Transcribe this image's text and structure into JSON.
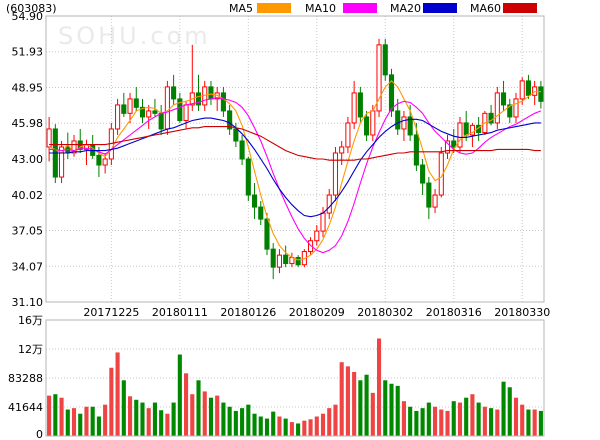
{
  "header": {
    "code": "(603083)",
    "legend": [
      {
        "name": "MA5",
        "color": "#ff9900"
      },
      {
        "name": "MA10",
        "color": "#ff00ff"
      },
      {
        "name": "MA20",
        "color": "#0000cc"
      },
      {
        "name": "MA60",
        "color": "#cc0000"
      }
    ]
  },
  "watermark": "SOHU.com",
  "colors": {
    "up": "#ff0000",
    "down": "#008000",
    "vol_up": "#ee4444",
    "vol_down": "#008800"
  },
  "chart_data": [
    {
      "type": "candlestick",
      "ylim": [
        31.1,
        54.9
      ],
      "y_ticks": [
        "54.90",
        "51.93",
        "48.95",
        "45.98",
        "43.00",
        "40.02",
        "37.05",
        "34.07",
        "31.10"
      ],
      "x_ticks": [
        {
          "label": "20171225",
          "index": 10
        },
        {
          "label": "20180111",
          "index": 21
        },
        {
          "label": "20180126",
          "index": 32
        },
        {
          "label": "20180209",
          "index": 43
        },
        {
          "label": "20180302",
          "index": 54
        },
        {
          "label": "20180316",
          "index": 65
        },
        {
          "label": "20180330",
          "index": 76
        }
      ],
      "grid": true,
      "candles": [
        [
          44.0,
          46.5,
          42.8,
          45.5
        ],
        [
          45.5,
          45.9,
          41.0,
          41.5
        ],
        [
          41.5,
          44.5,
          41.0,
          44.0
        ],
        [
          44.0,
          45.2,
          43.0,
          43.5
        ],
        [
          43.5,
          45.0,
          43.2,
          44.5
        ],
        [
          44.5,
          45.5,
          43.5,
          43.8
        ],
        [
          43.8,
          44.6,
          42.5,
          44.2
        ],
        [
          44.2,
          45.0,
          43.0,
          43.3
        ],
        [
          43.3,
          44.0,
          41.5,
          42.5
        ],
        [
          42.5,
          43.5,
          41.8,
          43.0
        ],
        [
          43.0,
          46.0,
          42.5,
          45.5
        ],
        [
          45.5,
          48.0,
          45.0,
          47.5
        ],
        [
          47.5,
          48.5,
          46.5,
          46.8
        ],
        [
          46.8,
          48.5,
          46.0,
          48.0
        ],
        [
          48.0,
          49.0,
          47.0,
          47.3
        ],
        [
          47.3,
          48.0,
          46.0,
          46.5
        ],
        [
          46.5,
          47.5,
          45.5,
          47.0
        ],
        [
          47.0,
          48.0,
          46.5,
          46.8
        ],
        [
          46.8,
          47.5,
          45.0,
          45.5
        ],
        [
          45.5,
          49.5,
          45.0,
          49.0
        ],
        [
          49.0,
          50.0,
          47.5,
          48.0
        ],
        [
          48.0,
          48.5,
          46.0,
          46.2
        ],
        [
          46.2,
          47.8,
          45.5,
          47.5
        ],
        [
          47.5,
          52.5,
          47.0,
          48.5
        ],
        [
          48.5,
          50.0,
          47.0,
          47.5
        ],
        [
          47.5,
          49.5,
          47.0,
          49.0
        ],
        [
          49.0,
          49.5,
          47.5,
          48.0
        ],
        [
          48.0,
          49.0,
          47.0,
          48.5
        ],
        [
          48.5,
          49.0,
          46.5,
          47.0
        ],
        [
          47.0,
          47.5,
          45.0,
          45.5
        ],
        [
          45.5,
          46.0,
          44.0,
          44.5
        ],
        [
          44.5,
          45.0,
          42.5,
          43.0
        ],
        [
          43.0,
          43.2,
          39.5,
          40.0
        ],
        [
          40.0,
          41.0,
          38.0,
          39.0
        ],
        [
          39.0,
          39.5,
          37.5,
          38.0
        ],
        [
          38.0,
          38.5,
          35.0,
          35.5
        ],
        [
          35.5,
          36.0,
          33.0,
          34.0
        ],
        [
          34.0,
          35.5,
          33.5,
          35.0
        ],
        [
          35.0,
          35.8,
          34.0,
          34.3
        ],
        [
          34.3,
          35.2,
          34.0,
          34.8
        ],
        [
          34.8,
          35.0,
          34.0,
          34.2
        ],
        [
          34.2,
          35.5,
          34.0,
          35.3
        ],
        [
          35.3,
          36.5,
          35.0,
          36.2
        ],
        [
          36.2,
          37.5,
          35.8,
          37.0
        ],
        [
          37.0,
          39.0,
          36.5,
          38.5
        ],
        [
          38.5,
          40.5,
          38.0,
          40.0
        ],
        [
          40.0,
          44.0,
          39.5,
          43.5
        ],
        [
          43.5,
          44.5,
          42.5,
          44.0
        ],
        [
          44.0,
          46.5,
          43.5,
          46.0
        ],
        [
          46.0,
          49.5,
          45.5,
          48.5
        ],
        [
          48.5,
          49.0,
          46.0,
          46.5
        ],
        [
          46.5,
          47.0,
          44.5,
          45.0
        ],
        [
          45.0,
          47.5,
          44.5,
          47.0
        ],
        [
          47.0,
          53.0,
          46.5,
          52.5
        ],
        [
          52.5,
          53.0,
          49.5,
          50.0
        ],
        [
          50.0,
          50.5,
          46.5,
          47.0
        ],
        [
          47.0,
          48.0,
          45.0,
          45.5
        ],
        [
          45.5,
          47.0,
          44.5,
          46.5
        ],
        [
          46.5,
          47.5,
          44.5,
          45.0
        ],
        [
          45.0,
          46.0,
          42.0,
          42.5
        ],
        [
          42.5,
          43.0,
          40.0,
          41.0
        ],
        [
          41.0,
          41.5,
          38.0,
          39.0
        ],
        [
          39.0,
          40.5,
          38.5,
          40.0
        ],
        [
          40.0,
          44.0,
          39.8,
          43.5
        ],
        [
          43.5,
          45.0,
          43.0,
          44.5
        ],
        [
          44.5,
          45.5,
          43.5,
          44.0
        ],
        [
          44.0,
          46.5,
          43.5,
          46.0
        ],
        [
          46.0,
          47.0,
          44.5,
          45.0
        ],
        [
          45.0,
          46.0,
          44.0,
          45.8
        ],
        [
          45.8,
          46.5,
          44.5,
          45.2
        ],
        [
          45.2,
          47.0,
          45.0,
          46.8
        ],
        [
          46.8,
          47.5,
          45.8,
          46.0
        ],
        [
          46.0,
          49.0,
          45.5,
          48.5
        ],
        [
          48.5,
          49.5,
          47.0,
          47.5
        ],
        [
          47.5,
          48.0,
          46.0,
          46.5
        ],
        [
          46.5,
          48.5,
          46.0,
          48.0
        ],
        [
          48.0,
          49.8,
          47.5,
          49.5
        ],
        [
          49.5,
          50.0,
          48.0,
          48.3
        ],
        [
          48.3,
          49.5,
          47.5,
          49.0
        ],
        [
          49.0,
          49.5,
          47.2,
          47.8
        ]
      ],
      "moving_averages": {
        "MA5": [
          44.0,
          43.8,
          43.5,
          44.2,
          43.5,
          44.0,
          44.2,
          43.9,
          43.5,
          43.2,
          43.8,
          44.8,
          45.5,
          46.2,
          47.0,
          47.2,
          47.3,
          47.2,
          46.8,
          47.0,
          47.5,
          47.7,
          47.8,
          48.0,
          48.2,
          48.3,
          48.4,
          48.3,
          48.0,
          47.6,
          47.0,
          45.8,
          44.0,
          42.0,
          40.0,
          38.2,
          36.8,
          35.8,
          35.2,
          34.8,
          34.6,
          34.7,
          35.0,
          35.5,
          36.3,
          37.5,
          39.0,
          41.0,
          42.8,
          44.5,
          46.0,
          46.8,
          47.0,
          48.0,
          49.0,
          49.5,
          49.0,
          48.0,
          47.0,
          45.5,
          43.8,
          42.0,
          41.2,
          41.5,
          42.5,
          43.8,
          44.6,
          45.0,
          45.2,
          45.6,
          46.0,
          46.2,
          46.6,
          47.0,
          47.4,
          47.6,
          47.8,
          48.2,
          48.6,
          48.6
        ],
        "MA10": [
          43.8,
          43.8,
          43.7,
          43.8,
          43.7,
          43.9,
          43.9,
          43.8,
          43.6,
          43.4,
          43.8,
          44.2,
          44.6,
          45.0,
          45.4,
          45.8,
          46.2,
          46.5,
          46.8,
          46.9,
          47.1,
          47.3,
          47.5,
          47.6,
          47.7,
          47.9,
          48.0,
          48.1,
          48.0,
          47.9,
          47.7,
          47.3,
          46.6,
          45.6,
          44.5,
          43.2,
          41.8,
          40.5,
          39.3,
          38.2,
          37.2,
          36.4,
          35.8,
          35.4,
          35.2,
          35.4,
          35.8,
          36.6,
          37.8,
          39.3,
          41.0,
          42.6,
          44.0,
          45.2,
          46.3,
          47.2,
          47.6,
          47.8,
          47.7,
          47.3,
          46.8,
          46.0,
          45.3,
          44.8,
          44.3,
          43.8,
          43.5,
          43.4,
          43.5,
          43.9,
          44.4,
          44.8,
          45.1,
          45.4,
          45.7,
          45.9,
          46.2,
          46.5,
          46.8,
          47.0
        ],
        "MA20": [
          43.5,
          43.5,
          43.5,
          43.5,
          43.6,
          43.6,
          43.7,
          43.7,
          43.7,
          43.7,
          43.8,
          43.9,
          44.1,
          44.3,
          44.5,
          44.7,
          44.9,
          45.1,
          45.3,
          45.5,
          45.6,
          45.8,
          46.0,
          46.2,
          46.3,
          46.4,
          46.4,
          46.3,
          46.2,
          46.0,
          45.6,
          45.1,
          44.5,
          43.8,
          43.0,
          42.2,
          41.3,
          40.5,
          39.8,
          39.2,
          38.7,
          38.3,
          38.2,
          38.3,
          38.5,
          39.0,
          39.6,
          40.3,
          41.1,
          42.0,
          42.9,
          43.6,
          44.2,
          44.8,
          45.3,
          45.7,
          46.0,
          46.2,
          46.3,
          46.3,
          46.2,
          45.9,
          45.6,
          45.3,
          45.1,
          44.9,
          44.8,
          44.8,
          44.9,
          45.0,
          45.1,
          45.2,
          45.4,
          45.5,
          45.6,
          45.7,
          45.8,
          45.9,
          46.0,
          46.0
        ],
        "MA60": [
          44.2,
          44.2,
          44.2,
          44.2,
          44.2,
          44.2,
          44.2,
          44.2,
          44.2,
          44.2,
          44.3,
          44.4,
          44.5,
          44.6,
          44.7,
          44.8,
          44.9,
          45.0,
          45.1,
          45.2,
          45.3,
          45.4,
          45.5,
          45.6,
          45.6,
          45.7,
          45.7,
          45.7,
          45.7,
          45.7,
          45.6,
          45.5,
          45.3,
          45.1,
          44.9,
          44.6,
          44.3,
          44.0,
          43.7,
          43.5,
          43.3,
          43.2,
          43.1,
          43.0,
          43.0,
          42.9,
          42.9,
          42.9,
          42.9,
          42.9,
          43.0,
          43.0,
          43.1,
          43.2,
          43.3,
          43.4,
          43.5,
          43.5,
          43.6,
          43.6,
          43.6,
          43.6,
          43.6,
          43.6,
          43.7,
          43.7,
          43.7,
          43.7,
          43.7,
          43.7,
          43.7,
          43.7,
          43.8,
          43.8,
          43.8,
          43.8,
          43.8,
          43.8,
          43.7,
          43.7
        ]
      }
    },
    {
      "type": "bar",
      "ylim": [
        0,
        166576
      ],
      "y_ticks": [
        {
          "label": "16万",
          "value": 166576
        },
        {
          "label": "12万",
          "value": 124932
        },
        {
          "label": "83288",
          "value": 83288
        },
        {
          "label": "41644",
          "value": 41644
        },
        {
          "label": "0",
          "value": 0
        }
      ],
      "values": [
        58000,
        60000,
        55000,
        38000,
        40000,
        32000,
        42000,
        42000,
        28000,
        45000,
        98000,
        120000,
        80000,
        57000,
        52000,
        48000,
        40000,
        48000,
        37000,
        32000,
        48000,
        117000,
        90000,
        60000,
        80000,
        64000,
        55000,
        58000,
        48000,
        42000,
        36000,
        40000,
        45000,
        32000,
        28000,
        25000,
        35000,
        28000,
        25000,
        20000,
        18000,
        22000,
        24000,
        28000,
        32000,
        40000,
        45000,
        106000,
        100000,
        92000,
        80000,
        88000,
        62000,
        140000,
        80000,
        75000,
        72000,
        50000,
        42000,
        36000,
        40000,
        48000,
        42000,
        38000,
        36000,
        50000,
        48000,
        55000,
        60000,
        48000,
        42000,
        40000,
        38000,
        78000,
        70000,
        55000,
        45000,
        38000,
        38000,
        36000
      ]
    }
  ]
}
